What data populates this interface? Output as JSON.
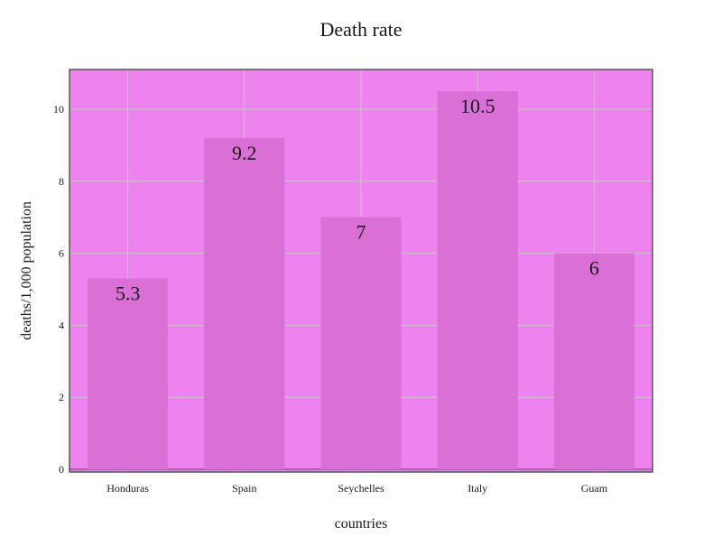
{
  "chart_data": {
    "type": "bar",
    "title": "Death rate",
    "xlabel": "countries",
    "ylabel": "deaths/1,000 population",
    "categories": [
      "Honduras",
      "Spain",
      "Seychelles",
      "Italy",
      "Guam"
    ],
    "values": [
      5.3,
      9.2,
      7,
      10.5,
      6
    ],
    "data_labels": [
      "5.3",
      "9.2",
      "7",
      "10.5",
      "6"
    ],
    "ylim": [
      0,
      11.1
    ],
    "yticks": [
      0,
      2,
      4,
      6,
      8,
      10
    ],
    "grid": true,
    "colors": {
      "plot_background": "#ee82ee",
      "bar": "#da70d6",
      "grid": "#c8c8c8",
      "frame": "#555555"
    }
  }
}
